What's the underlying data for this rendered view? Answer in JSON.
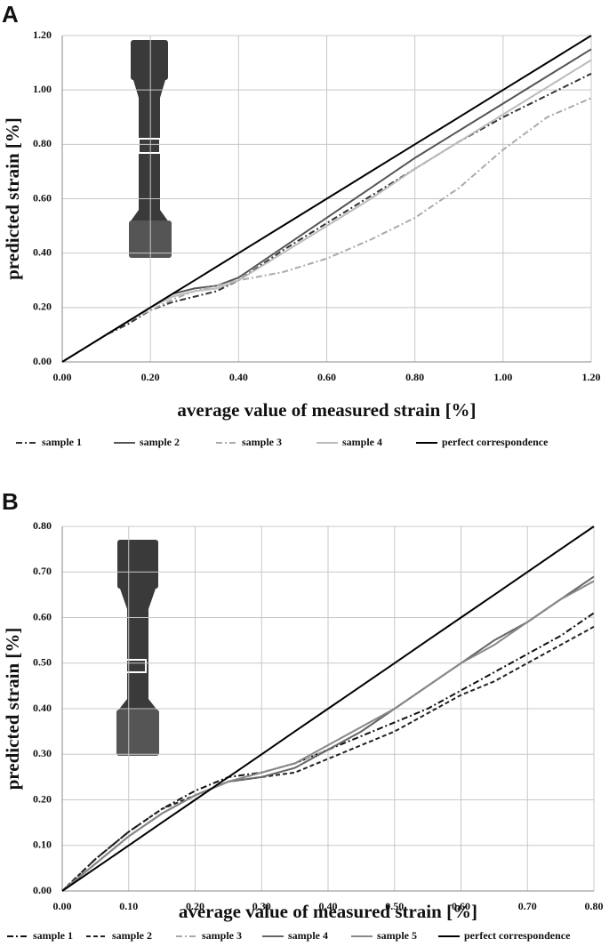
{
  "chart_data": [
    {
      "type": "line",
      "panel_label": "A",
      "x_label": "average value of measured strain [%]",
      "y_label": "predicted strain [%]",
      "x": [
        0,
        0.05,
        0.1,
        0.15,
        0.2,
        0.25,
        0.3,
        0.35,
        0.4,
        0.5,
        0.6,
        0.7,
        0.8,
        0.9,
        1.0,
        1.1,
        1.2
      ],
      "series": [
        {
          "name": "sample 1",
          "color": "#333333",
          "dash": "7 3 2 3",
          "values": [
            0,
            0.05,
            0.1,
            0.14,
            0.19,
            0.22,
            0.24,
            0.26,
            0.3,
            0.41,
            0.51,
            0.61,
            0.71,
            0.81,
            0.9,
            0.98,
            1.06
          ]
        },
        {
          "name": "sample 2",
          "color": "#555555",
          "dash": "none",
          "values": [
            0,
            0.05,
            0.1,
            0.15,
            0.2,
            0.25,
            0.27,
            0.28,
            0.31,
            0.42,
            0.53,
            0.64,
            0.75,
            0.85,
            0.95,
            1.05,
            1.15
          ]
        },
        {
          "name": "sample 3",
          "color": "#aaaaaa",
          "dash": "7 3 2 3",
          "values": [
            0,
            0.05,
            0.1,
            0.15,
            0.19,
            0.23,
            0.26,
            0.28,
            0.3,
            0.33,
            0.38,
            0.45,
            0.53,
            0.64,
            0.78,
            0.9,
            0.97
          ]
        },
        {
          "name": "sample 4",
          "color": "#bbbbbb",
          "dash": "none",
          "values": [
            0,
            0.05,
            0.1,
            0.15,
            0.2,
            0.24,
            0.26,
            0.27,
            0.3,
            0.4,
            0.5,
            0.6,
            0.71,
            0.81,
            0.91,
            1.01,
            1.11
          ]
        },
        {
          "name": "perfect correspondence",
          "color": "#000000",
          "dash": "none",
          "values": [
            0,
            0.05,
            0.1,
            0.15,
            0.2,
            0.25,
            0.3,
            0.35,
            0.4,
            0.5,
            0.6,
            0.7,
            0.8,
            0.9,
            1.0,
            1.1,
            1.2
          ]
        }
      ],
      "xlim": [
        0,
        1.2
      ],
      "ylim": [
        0,
        1.2
      ],
      "xticks": [
        {
          "value": 0,
          "label": "0.00"
        },
        {
          "value": 0.2,
          "label": "0.20"
        },
        {
          "value": 0.4,
          "label": "0.40"
        },
        {
          "value": 0.6,
          "label": "0.60"
        },
        {
          "value": 0.8,
          "label": "0.80"
        },
        {
          "value": 1.0,
          "label": "1.00"
        },
        {
          "value": 1.2,
          "label": "1.20"
        }
      ],
      "yticks": [
        {
          "value": 0,
          "label": "0.00"
        },
        {
          "value": 0.2,
          "label": "0.20"
        },
        {
          "value": 0.4,
          "label": "0.40"
        },
        {
          "value": 0.6,
          "label": "0.60"
        },
        {
          "value": 0.8,
          "label": "0.80"
        },
        {
          "value": 1.0,
          "label": "1.00"
        },
        {
          "value": 1.2,
          "label": "1.20"
        }
      ],
      "grid": true,
      "legend": "bottom"
    },
    {
      "type": "line",
      "panel_label": "B",
      "x_label": "average value of measured strain [%]",
      "y_label": "predicted strain [%]",
      "x": [
        0,
        0.05,
        0.1,
        0.15,
        0.2,
        0.25,
        0.3,
        0.35,
        0.4,
        0.45,
        0.5,
        0.55,
        0.6,
        0.65,
        0.7,
        0.75,
        0.8
      ],
      "series": [
        {
          "name": "sample 1",
          "color": "#111111",
          "dash": "7 3 2 3",
          "values": [
            0,
            0.07,
            0.13,
            0.18,
            0.22,
            0.25,
            0.26,
            0.28,
            0.31,
            0.34,
            0.37,
            0.4,
            0.44,
            0.48,
            0.52,
            0.56,
            0.61
          ]
        },
        {
          "name": "sample 2",
          "color": "#222222",
          "dash": "5 3",
          "values": [
            0,
            0.07,
            0.13,
            0.18,
            0.21,
            0.24,
            0.25,
            0.26,
            0.29,
            0.32,
            0.35,
            0.39,
            0.43,
            0.46,
            0.5,
            0.54,
            0.58
          ]
        },
        {
          "name": "sample 3",
          "color": "#aaaaaa",
          "dash": "7 3 2 3",
          "values": [
            0,
            0.06,
            0.12,
            0.17,
            0.21,
            0.24,
            0.26,
            0.28,
            0.31,
            0.35,
            0.4,
            0.45,
            0.5,
            0.55,
            0.59,
            0.64,
            0.68
          ]
        },
        {
          "name": "sample 4",
          "color": "#666666",
          "dash": "none",
          "values": [
            0,
            0.06,
            0.12,
            0.17,
            0.21,
            0.24,
            0.25,
            0.27,
            0.31,
            0.35,
            0.4,
            0.45,
            0.5,
            0.55,
            0.59,
            0.64,
            0.69
          ]
        },
        {
          "name": "sample 5",
          "color": "#888888",
          "dash": "none",
          "values": [
            0,
            0.06,
            0.12,
            0.17,
            0.21,
            0.24,
            0.26,
            0.28,
            0.32,
            0.36,
            0.4,
            0.45,
            0.5,
            0.54,
            0.59,
            0.64,
            0.68
          ]
        },
        {
          "name": "perfect correspondence",
          "color": "#000000",
          "dash": "none",
          "values": [
            0,
            0.05,
            0.1,
            0.15,
            0.2,
            0.25,
            0.3,
            0.35,
            0.4,
            0.45,
            0.5,
            0.55,
            0.6,
            0.65,
            0.7,
            0.75,
            0.8
          ]
        }
      ],
      "xlim": [
        0,
        0.8
      ],
      "ylim": [
        0,
        0.8
      ],
      "xticks": [
        {
          "value": 0,
          "label": "0.00"
        },
        {
          "value": 0.1,
          "label": "0.10"
        },
        {
          "value": 0.2,
          "label": "0.20"
        },
        {
          "value": 0.3,
          "label": "0.30"
        },
        {
          "value": 0.4,
          "label": "0.40"
        },
        {
          "value": 0.5,
          "label": "0.50"
        },
        {
          "value": 0.6,
          "label": "0.60"
        },
        {
          "value": 0.7,
          "label": "0.70"
        },
        {
          "value": 0.8,
          "label": "0.80"
        }
      ],
      "yticks": [
        {
          "value": 0,
          "label": "0.00"
        },
        {
          "value": 0.1,
          "label": "0.10"
        },
        {
          "value": 0.2,
          "label": "0.20"
        },
        {
          "value": 0.3,
          "label": "0.30"
        },
        {
          "value": 0.4,
          "label": "0.40"
        },
        {
          "value": 0.5,
          "label": "0.50"
        },
        {
          "value": 0.6,
          "label": "0.60"
        },
        {
          "value": 0.7,
          "label": "0.70"
        },
        {
          "value": 0.8,
          "label": "0.80"
        }
      ],
      "grid": true,
      "legend": "bottom"
    }
  ]
}
